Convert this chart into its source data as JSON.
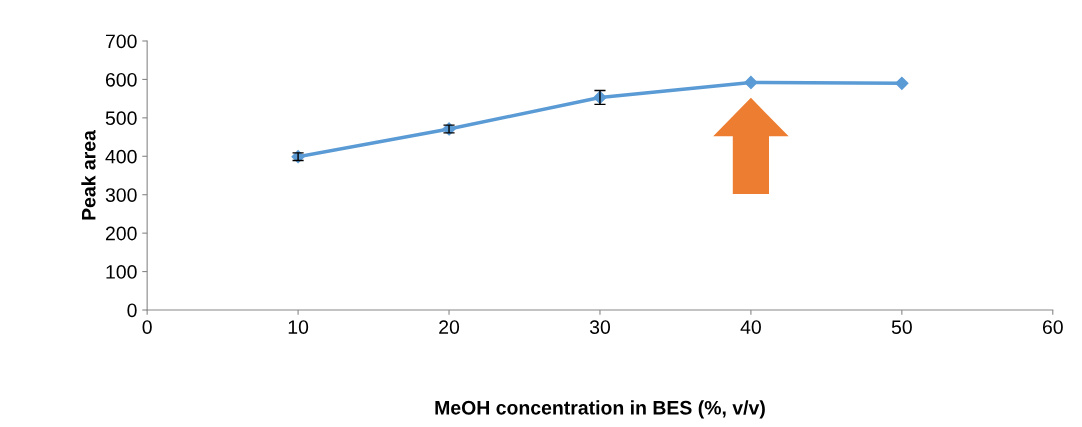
{
  "chart_data": {
    "type": "line",
    "xlabel": "MeOH concentration in BES (%, v/v)",
    "ylabel": "Peak area",
    "x": [
      10,
      20,
      30,
      40,
      50
    ],
    "series": [
      {
        "color": "#5b9bd5",
        "values": [
          399,
          471,
          553,
          592,
          590
        ],
        "errors": [
          10,
          10,
          18,
          null,
          null
        ]
      }
    ],
    "xlim": [
      0,
      60
    ],
    "xticks": [
      0,
      10,
      20,
      30,
      40,
      50,
      60
    ],
    "ylim": [
      0,
      700
    ],
    "yticks": [
      0,
      100,
      200,
      300,
      400,
      500,
      600,
      700
    ],
    "grid": false,
    "legend": false,
    "marker": "diamond",
    "line_style": "solid"
  }
}
